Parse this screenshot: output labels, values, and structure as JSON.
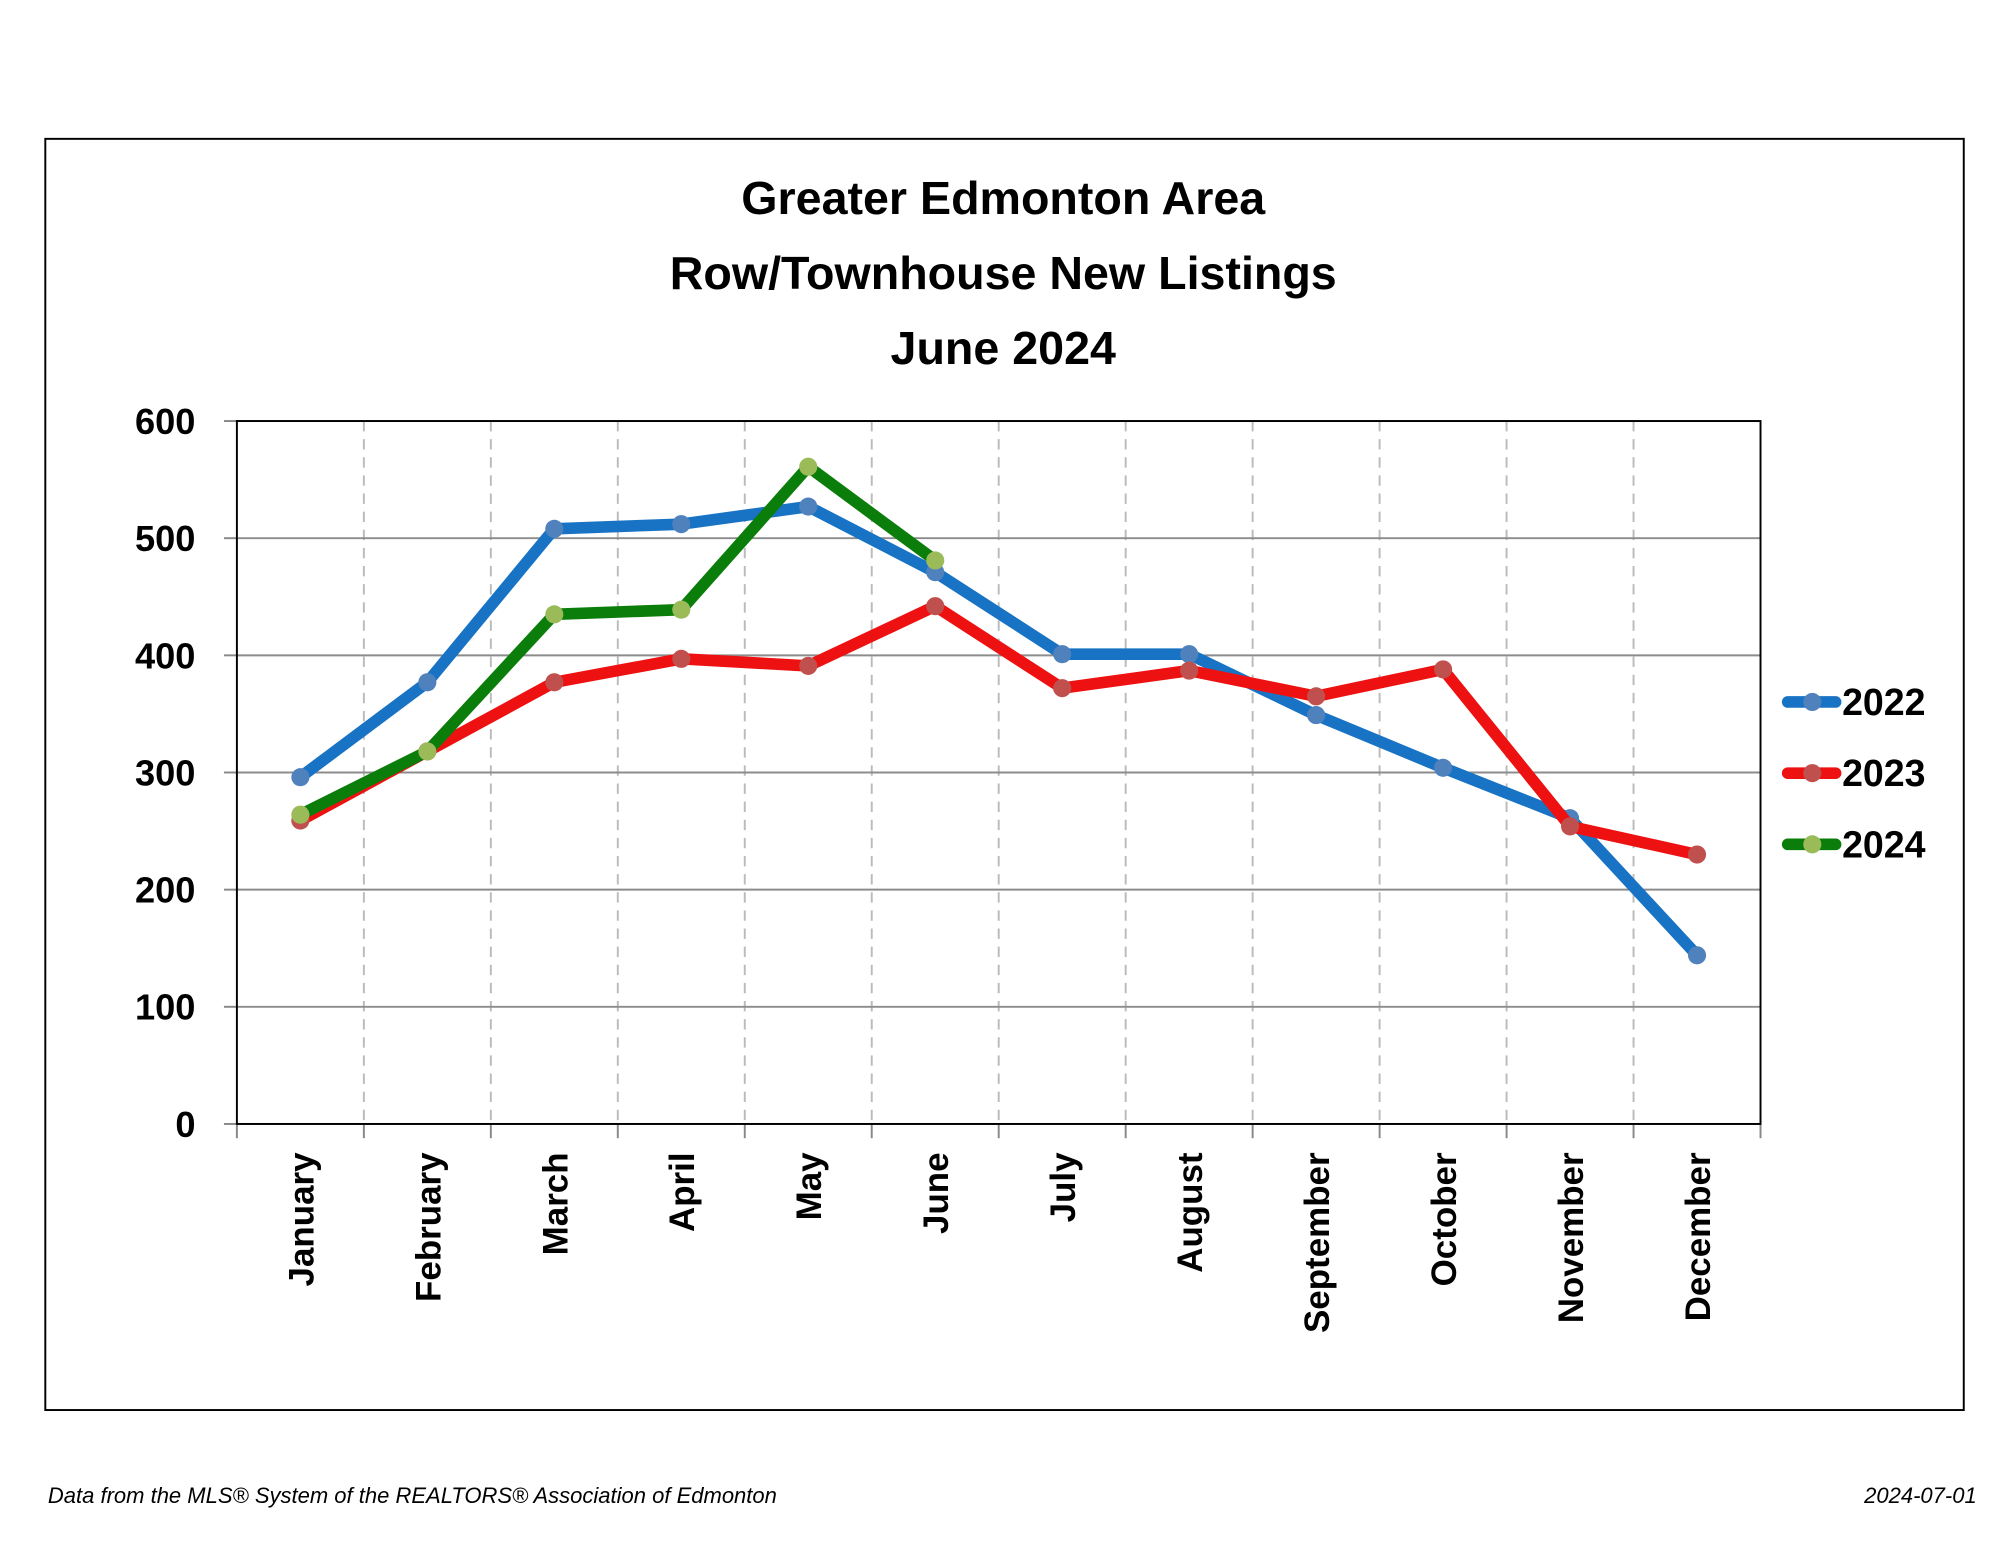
{
  "chart_data": {
    "type": "line",
    "title": [
      "Greater Edmonton Area",
      "Row/Townhouse New Listings",
      "June 2024"
    ],
    "categories": [
      "January",
      "February",
      "March",
      "April",
      "May",
      "June",
      "July",
      "August",
      "September",
      "October",
      "November",
      "December"
    ],
    "series": [
      {
        "name": "2022",
        "color": "#1873c4",
        "marker_color": "#4f81bd",
        "values": [
          296,
          377,
          508,
          512,
          527,
          471,
          401,
          401,
          349,
          304,
          261,
          144
        ]
      },
      {
        "name": "2023",
        "color": "#ee1111",
        "marker_color": "#c0504d",
        "values": [
          259,
          318,
          377,
          397,
          391,
          442,
          372,
          387,
          365,
          388,
          254,
          230
        ]
      },
      {
        "name": "2024",
        "color": "#0a7d0a",
        "marker_color": "#9bbb59",
        "values": [
          264,
          318,
          435,
          439,
          561,
          481,
          null,
          null,
          null,
          null,
          null,
          null
        ]
      }
    ],
    "ylim": [
      0,
      600
    ],
    "yticks": [
      0,
      100,
      200,
      300,
      400,
      500,
      600
    ],
    "grid": true,
    "legend": "right",
    "source": "Data from the MLS® System of the REALTORS® Association of Edmonton",
    "date": "2024-07-01"
  }
}
